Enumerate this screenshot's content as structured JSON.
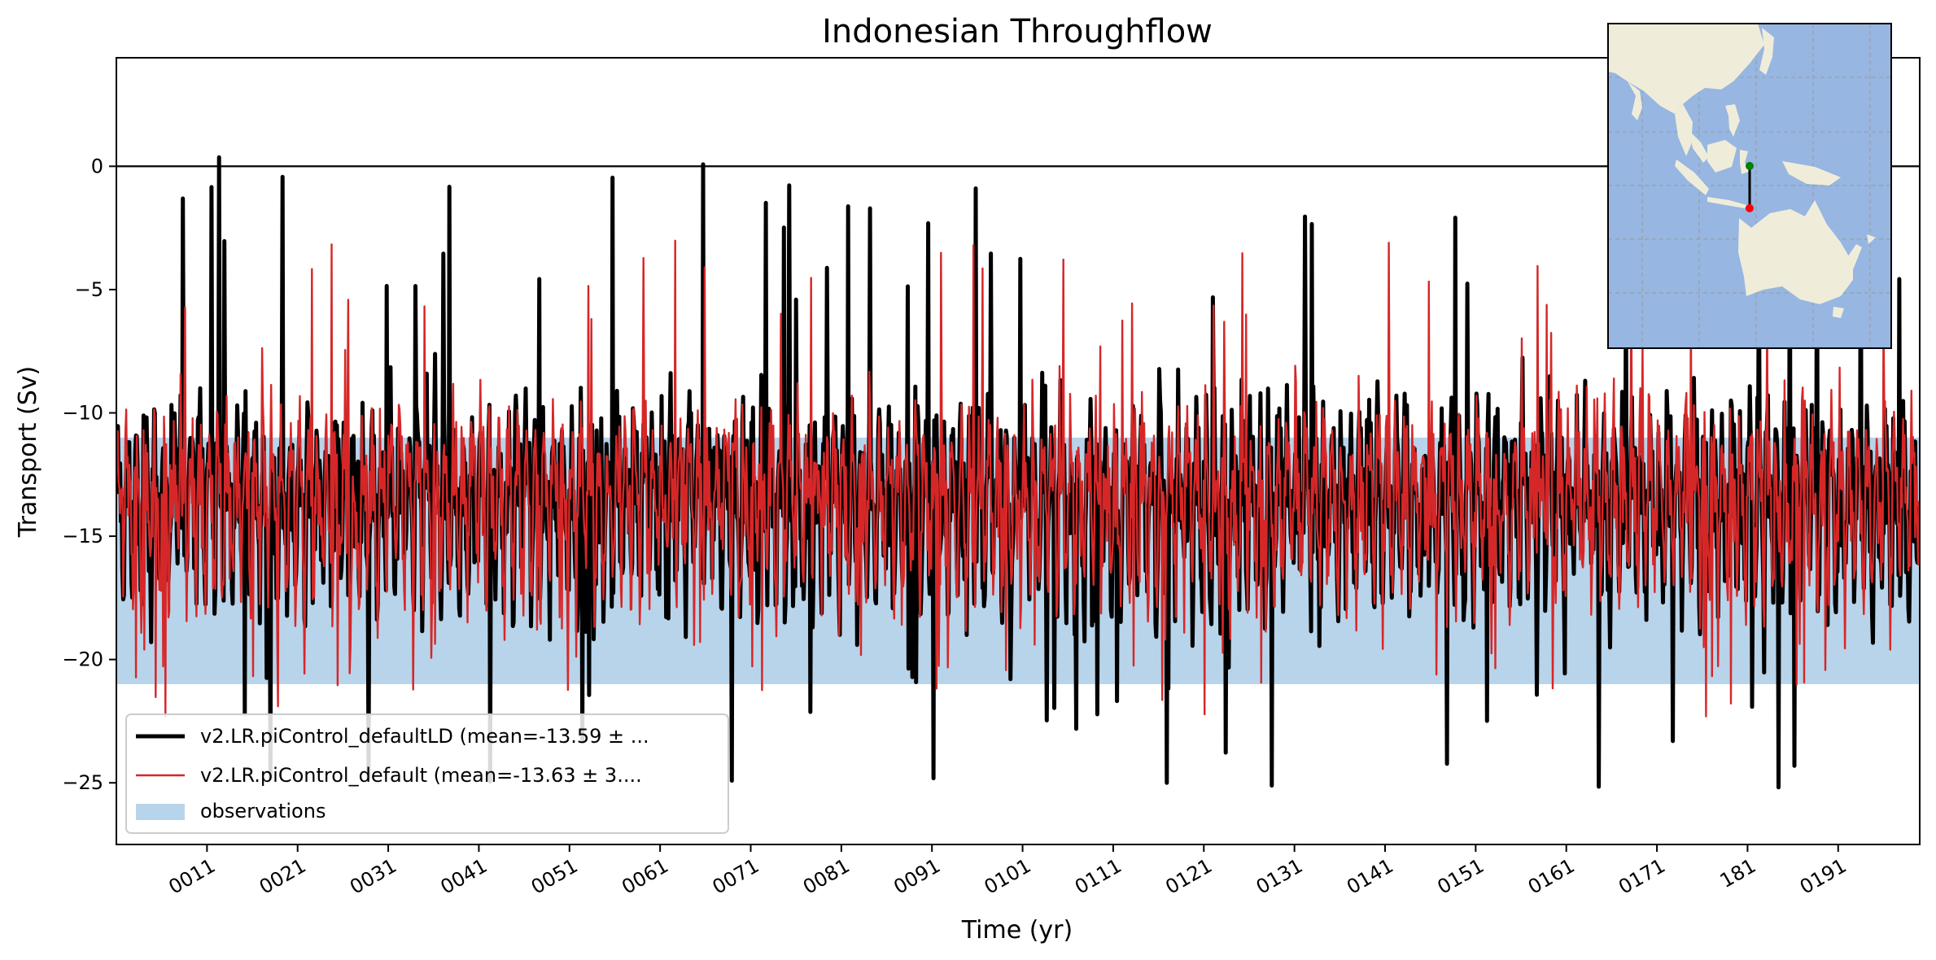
{
  "chart_data": {
    "type": "line",
    "title": "Indonesian Throughflow",
    "xlabel": "Time (yr)",
    "ylabel": "Transport (Sv)",
    "xlim": [
      1,
      200
    ],
    "ylim": [
      -27.5,
      4.4
    ],
    "x_ticks": [
      11,
      21,
      31,
      41,
      51,
      61,
      71,
      81,
      91,
      101,
      111,
      121,
      131,
      141,
      151,
      161,
      171,
      181,
      191
    ],
    "x_tick_labels": [
      "0011",
      "0021",
      "0031",
      "0041",
      "0051",
      "0061",
      "0071",
      "0081",
      "0091",
      "0101",
      "0111",
      "0121",
      "0131",
      "0141",
      "0151",
      "0161",
      "0171",
      "181",
      "0191"
    ],
    "y_ticks": [
      0,
      -5,
      -10,
      -15,
      -20,
      -25
    ],
    "y_tick_labels": [
      "0",
      "−5",
      "−10",
      "−15",
      "−20",
      "−25"
    ],
    "zero_line": 0,
    "observations": {
      "label": "observations",
      "low": -21.0,
      "high": -11.0,
      "color": "#b8d4ea"
    },
    "series": [
      {
        "name": "v2.LR.piControl_defaultLD (mean=-13.59 ± ...",
        "color": "#000000",
        "mean": -13.59,
        "std": 3.2,
        "min": -25.8,
        "max": 1.1,
        "samples_per_year": 12,
        "seed": 17
      },
      {
        "name": "v2.LR.piControl_default (mean=-13.63 ± 3....",
        "color": "#d62728",
        "mean": -13.63,
        "std": 3.0,
        "min": -22.9,
        "max": -2.4,
        "samples_per_year": 12,
        "seed": 91
      }
    ],
    "legend": {
      "location": "lower-left",
      "entries": [
        "v2.LR.piControl_defaultLD (mean=-13.59 ± ...",
        "v2.LR.piControl_default (mean=-13.63 ± 3....",
        "observations"
      ]
    },
    "inset_map": {
      "location": "top-right",
      "land_color": "#efedd9",
      "ocean_color": "#97b6e1",
      "transect_start_color": "#008000",
      "transect_end_color": "#ff0000"
    }
  }
}
